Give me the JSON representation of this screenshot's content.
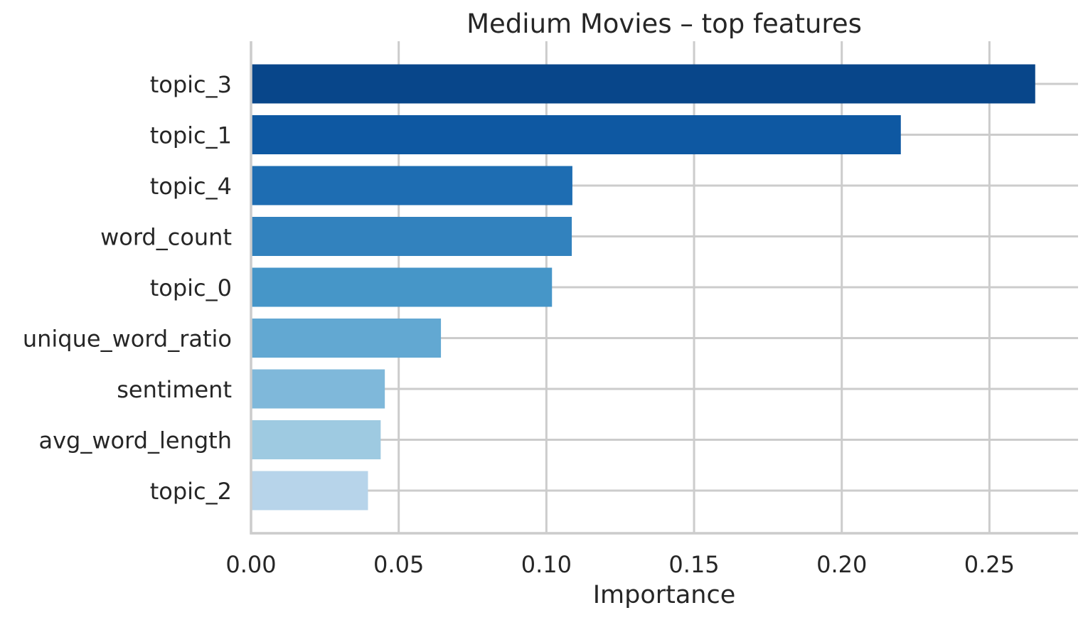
{
  "chart_data": {
    "type": "bar",
    "orientation": "horizontal",
    "title": "Medium Movies – top features",
    "xlabel": "Importance",
    "ylabel": "",
    "xlim": [
      0,
      0.28
    ],
    "xticks": [
      0.0,
      0.05,
      0.1,
      0.15,
      0.2,
      0.25
    ],
    "xtick_labels": [
      "0.00",
      "0.05",
      "0.10",
      "0.15",
      "0.20",
      "0.25"
    ],
    "grid": true,
    "categories": [
      "topic_3",
      "topic_1",
      "topic_4",
      "word_count",
      "topic_0",
      "unique_word_ratio",
      "sentiment",
      "avg_word_length",
      "topic_2"
    ],
    "values": [
      0.2655,
      0.22,
      0.1088,
      0.1086,
      0.1019,
      0.0643,
      0.0453,
      0.0439,
      0.0396
    ],
    "colors": [
      "#08468a",
      "#0e58a2",
      "#1e6db2",
      "#3282be",
      "#4696c8",
      "#62a8d2",
      "#7fb8da",
      "#9ecae1",
      "#b7d4ea"
    ]
  }
}
